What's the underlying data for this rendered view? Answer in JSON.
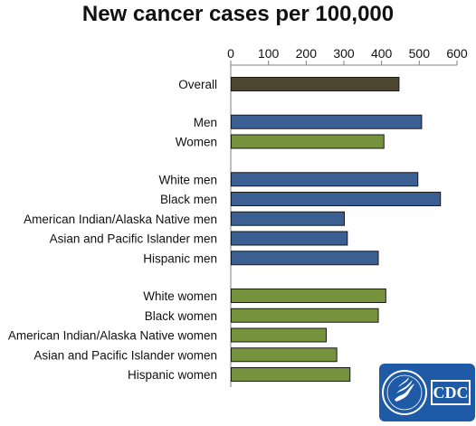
{
  "chart_data": {
    "type": "bar",
    "orientation": "horizontal",
    "title": "New cancer cases per 100,000",
    "xlabel": "",
    "ylabel": "",
    "xlim": [
      0,
      600
    ],
    "ticks": [
      0,
      100,
      200,
      300,
      400,
      500,
      600
    ],
    "tick_labels": [
      "0",
      "100",
      "200",
      "300",
      "400",
      "500",
      "600"
    ],
    "axis_position": "top",
    "grid": false,
    "legend": "none",
    "categories": [
      "Overall",
      "Men",
      "Women",
      "White men",
      "Black men",
      "American Indian/Alaska Native men",
      "Asian and Pacific Islander men",
      "Hispanic men",
      "White women",
      "Black women",
      "American Indian/Alaska Native women",
      "Asian and Pacific Islander women",
      "Hispanic women"
    ],
    "values": [
      445,
      505,
      405,
      495,
      555,
      300,
      308,
      390,
      410,
      390,
      252,
      280,
      315
    ],
    "groups": [
      0,
      1,
      1,
      2,
      2,
      2,
      2,
      2,
      3,
      3,
      3,
      3,
      3
    ],
    "bar_colors": [
      "#4d4630",
      "#3b5f93",
      "#76923c",
      "#3b5f93",
      "#3b5f93",
      "#3b5f93",
      "#3b5f93",
      "#3b5f93",
      "#76923c",
      "#76923c",
      "#76923c",
      "#76923c",
      "#76923c"
    ]
  },
  "logo": {
    "name": "cdc-logo-icon",
    "text": "CDC",
    "background": "#1e5aa5"
  }
}
